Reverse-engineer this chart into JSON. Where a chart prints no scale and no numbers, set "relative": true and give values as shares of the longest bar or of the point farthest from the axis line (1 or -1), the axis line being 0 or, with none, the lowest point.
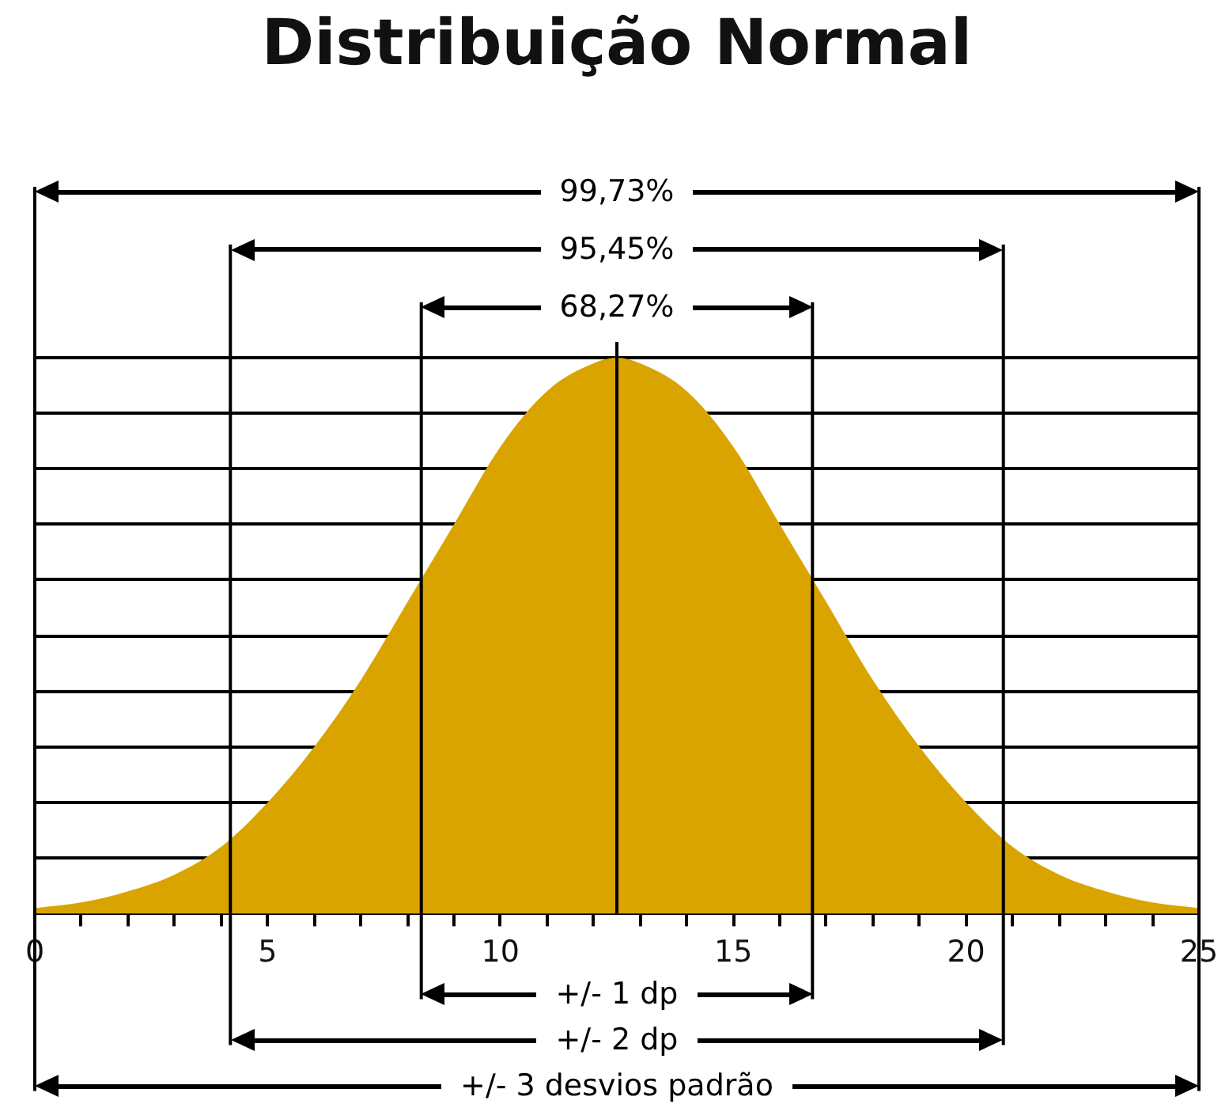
{
  "chart_data": {
    "type": "area",
    "title": "Distribuição Normal",
    "x": [
      0,
      1,
      2,
      3,
      4,
      5,
      6,
      7,
      8,
      9,
      10,
      11,
      12,
      12.5,
      13,
      14,
      15,
      16,
      17,
      18,
      19,
      20,
      21,
      22,
      23,
      24,
      25
    ],
    "values": [
      0.01,
      0.02,
      0.04,
      0.07,
      0.12,
      0.2,
      0.3,
      0.42,
      0.56,
      0.7,
      0.84,
      0.94,
      0.99,
      1,
      0.99,
      0.94,
      0.84,
      0.7,
      0.56,
      0.42,
      0.3,
      0.2,
      0.12,
      0.07,
      0.04,
      0.02,
      0.01
    ],
    "color": "#d9a400",
    "relative": true,
    "xlim": [
      0,
      25
    ],
    "xticks": [
      0,
      {
        "value": 1,
        "label": null
      },
      {
        "value": 2,
        "label": null
      },
      {
        "value": 3,
        "label": null
      },
      {
        "value": 4,
        "label": null
      },
      5,
      {
        "value": 6,
        "label": null
      },
      {
        "value": 7,
        "label": null
      },
      {
        "value": 8,
        "label": null
      },
      {
        "value": 9,
        "label": null
      },
      10,
      {
        "value": 11,
        "label": null
      },
      {
        "value": 12,
        "label": null
      },
      {
        "value": 13,
        "label": null
      },
      {
        "value": 14,
        "label": null
      },
      15,
      {
        "value": 16,
        "label": null
      },
      {
        "value": 17,
        "label": null
      },
      {
        "value": 18,
        "label": null
      },
      {
        "value": 19,
        "label": null
      },
      20,
      {
        "value": 21,
        "label": null
      },
      {
        "value": 22,
        "label": null
      },
      {
        "value": 23,
        "label": null
      },
      {
        "value": 24,
        "label": null
      },
      25
    ],
    "grid": "y",
    "legend": false,
    "ref_lines": [
      {
        "axis": "x",
        "value": 0
      },
      {
        "axis": "x",
        "value": 4.2
      },
      {
        "axis": "x",
        "value": 8.3
      },
      {
        "axis": "x",
        "value": 12.5
      },
      {
        "axis": "x",
        "value": 16.7
      },
      {
        "axis": "x",
        "value": 20.8
      },
      {
        "axis": "x",
        "value": 25
      }
    ],
    "annotations": [
      "99,73%",
      "95,45%",
      "68,27%",
      "+/- 1 dp",
      "+/- 2 dp",
      "+/- 3 desvios padrão"
    ]
  }
}
